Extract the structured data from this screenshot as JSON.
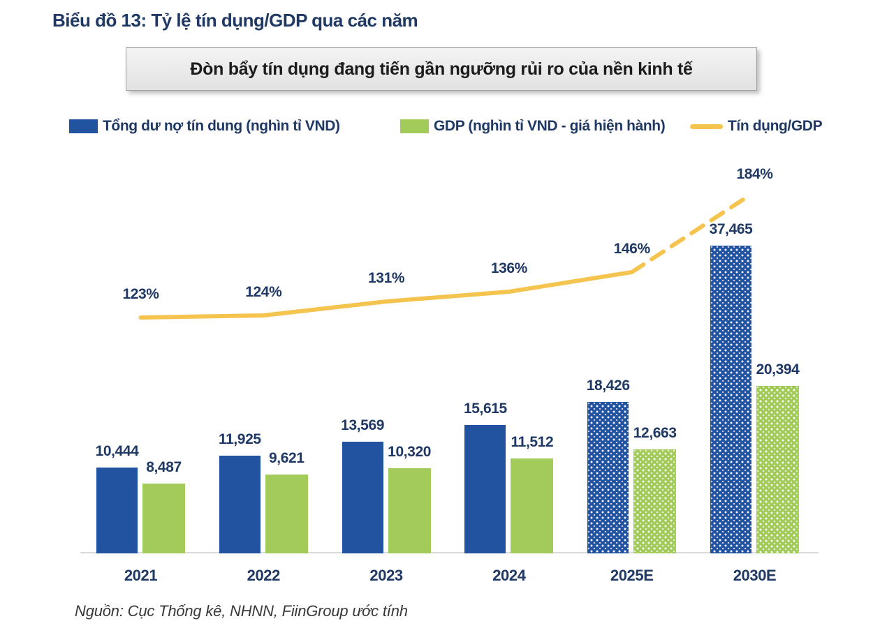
{
  "title": "Biểu đồ 13: Tỷ lệ tín dụng/GDP qua các năm",
  "callout": "Đòn bẩy tín dụng đang tiến gần ngưỡng rủi ro của nền kinh tế",
  "legend": {
    "items": [
      {
        "label": "Tổng dư nợ tín dung (nghìn tỉ VND)",
        "swatch": "blue-bar-swatch"
      },
      {
        "label": "GDP (nghìn tỉ VND - giá hiện hành)",
        "swatch": "green-bar-swatch"
      },
      {
        "label": "Tín dụng/GDP",
        "swatch": "yellow-line-swatch"
      }
    ]
  },
  "source": "Nguồn: Cục Thống kê, NHNN, FiinGroup ước tính",
  "colors": {
    "navy_text": "#1F3864",
    "credit_bar": "#2153A0",
    "gdp_bar": "#A2CB5A",
    "ratio_line": "#F4C44E",
    "axis_line": "#D9D9D9",
    "callout_bg": "#EBEBEB",
    "callout_border": "#9F9F9F"
  },
  "chart_data": {
    "type": "bar",
    "subtype": "grouped-bars-with-line-overlay",
    "title": "Tỷ lệ tín dụng/GDP qua các năm",
    "categories": [
      "2021",
      "2022",
      "2023",
      "2024",
      "2025E",
      "2030E"
    ],
    "series": [
      {
        "name": "Tổng dư nợ tín dung (nghìn tỉ VND)",
        "type": "bar",
        "color": "#2153A0",
        "values": [
          10444,
          11925,
          13569,
          15615,
          18426,
          37465
        ],
        "value_labels": [
          "10,444",
          "11,925",
          "13,569",
          "15,615",
          "18,426",
          "37,465"
        ]
      },
      {
        "name": "GDP (nghìn tỉ VND - giá hiện hành)",
        "type": "bar",
        "color": "#A2CB5A",
        "values": [
          8487,
          9621,
          10320,
          11512,
          12663,
          20394
        ],
        "value_labels": [
          "8,487",
          "9,621",
          "10,320",
          "11,512",
          "12,663",
          "20,394"
        ]
      },
      {
        "name": "Tín dụng/GDP",
        "type": "line",
        "unit": "%",
        "color": "#F4C44E",
        "values": [
          123,
          124,
          131,
          136,
          146,
          184
        ],
        "value_labels": [
          "123%",
          "124%",
          "131%",
          "136%",
          "146%",
          "184%"
        ]
      }
    ],
    "estimated_categories": [
      "2025E",
      "2030E"
    ],
    "estimated_style": "dotted-bar-fill-and-dashed-line-segment",
    "value_labels_shown": true,
    "grid": false,
    "y_axis_shown": false,
    "legend_position": "top",
    "xlabel": "",
    "ylabel": ""
  }
}
